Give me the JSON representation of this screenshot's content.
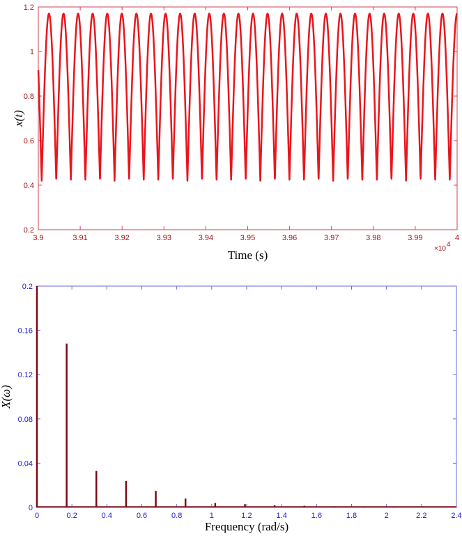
{
  "chart_data": [
    {
      "type": "line",
      "xlabel": "Time  (s)",
      "ylabel": "x(t)",
      "xlim": [
        39000,
        40000
      ],
      "ylim": [
        0.2,
        1.2
      ],
      "x_ticks": [
        39000,
        39100,
        39200,
        39300,
        39400,
        39500,
        39600,
        39700,
        39800,
        39900,
        40000
      ],
      "x_tick_labels": [
        "3.9",
        "3.91",
        "3.92",
        "3.93",
        "3.94",
        "3.95",
        "3.96",
        "3.97",
        "3.98",
        "3.99",
        "4"
      ],
      "x_multiplier": "×10",
      "x_multiplier_exp": "4",
      "y_ticks": [
        0.2,
        0.4,
        0.6,
        0.8,
        1.0,
        1.2
      ],
      "y_tick_labels": [
        "0.2",
        "0.4",
        "0.6",
        "0.8",
        "1",
        "1.2"
      ],
      "series": [
        {
          "color": "#e8161c",
          "signal": {
            "form": "periodic",
            "period": 34.8,
            "max": 1.17,
            "min": 0.42,
            "first_minimum_at": 39008
          }
        }
      ],
      "colors": {
        "axes": "#d04050",
        "ticks": "#a01818"
      }
    },
    {
      "type": "bar",
      "xlabel": "Frequency  (rad/s)",
      "ylabel": "X(ω)",
      "xlim": [
        0,
        2.4
      ],
      "ylim": [
        0,
        0.2
      ],
      "x_ticks": [
        0,
        0.2,
        0.4,
        0.6,
        0.8,
        1.0,
        1.2,
        1.4,
        1.6,
        1.8,
        2.0,
        2.2,
        2.4
      ],
      "x_tick_labels": [
        "0",
        "0.2",
        "0.4",
        "0.6",
        "0.8",
        "1",
        "1.2",
        "1.4",
        "1.6",
        "1.8",
        "2",
        "2.2",
        "2.4"
      ],
      "y_ticks": [
        0,
        0.04,
        0.08,
        0.12,
        0.16,
        0.2
      ],
      "y_tick_labels": [
        "0",
        "0.04",
        "0.08",
        "0.12",
        "0.16",
        "0.2"
      ],
      "x": [
        0.0,
        0.17,
        0.34,
        0.51,
        0.68,
        0.85,
        1.02,
        1.19,
        1.36,
        1.53,
        1.7,
        1.87,
        2.04,
        2.21,
        2.38
      ],
      "values": [
        0.2,
        0.148,
        0.033,
        0.024,
        0.015,
        0.008,
        0.004,
        0.003,
        0.002,
        0.0015,
        0.001,
        0.0008,
        0.0006,
        0.0005,
        0.0004
      ],
      "colors": {
        "bars": "#7a0a14",
        "axes": "#6a6ad8",
        "ticks": "#1c1ccc"
      }
    }
  ]
}
